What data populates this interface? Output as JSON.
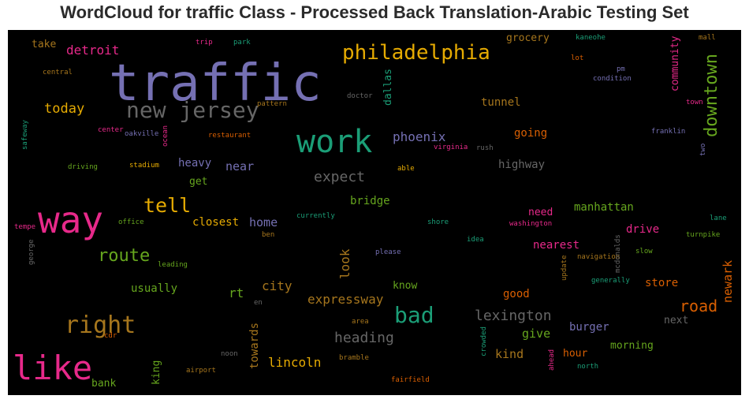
{
  "title": "WordCloud for traffic Class - Processed Back Translation-Arabic Testing Set",
  "words": [
    {
      "text": "traffic",
      "color": "#7570b3"
    },
    {
      "text": "way",
      "color": "#e7298a"
    },
    {
      "text": "like",
      "color": "#e7298a"
    },
    {
      "text": "work",
      "color": "#1b9e77"
    },
    {
      "text": "right",
      "color": "#a6761d"
    },
    {
      "text": "new jersey",
      "color": "#666666"
    },
    {
      "text": "philadelphia",
      "color": "#e6ab02"
    },
    {
      "text": "bad",
      "color": "#1b9e77"
    },
    {
      "text": "tell",
      "color": "#e6ab02"
    },
    {
      "text": "route",
      "color": "#66a61e"
    },
    {
      "text": "downtown",
      "color": "#66a61e"
    },
    {
      "text": "road",
      "color": "#d95f02"
    },
    {
      "text": "detroit",
      "color": "#e7298a"
    },
    {
      "text": "today",
      "color": "#e6ab02"
    },
    {
      "text": "phoenix",
      "color": "#7570b3"
    },
    {
      "text": "expect",
      "color": "#666666"
    },
    {
      "text": "lexington",
      "color": "#666666"
    },
    {
      "text": "heading",
      "color": "#666666"
    },
    {
      "text": "expressway",
      "color": "#a6761d"
    },
    {
      "text": "lincoln",
      "color": "#e6ab02"
    },
    {
      "text": "closest",
      "color": "#e6ab02"
    },
    {
      "text": "city",
      "color": "#a6761d"
    },
    {
      "text": "home",
      "color": "#7570b3"
    },
    {
      "text": "near",
      "color": "#7570b3"
    },
    {
      "text": "heavy",
      "color": "#7570b3"
    },
    {
      "text": "get",
      "color": "#66a61e"
    },
    {
      "text": "rt",
      "color": "#66a61e"
    },
    {
      "text": "usually",
      "color": "#66a61e"
    },
    {
      "text": "bridge",
      "color": "#66a61e"
    },
    {
      "text": "know",
      "color": "#66a61e"
    },
    {
      "text": "give",
      "color": "#66a61e"
    },
    {
      "text": "kind",
      "color": "#a6761d"
    },
    {
      "text": "good",
      "color": "#d95f02"
    },
    {
      "text": "going",
      "color": "#d95f02"
    },
    {
      "text": "tunnel",
      "color": "#a6761d"
    },
    {
      "text": "highway",
      "color": "#666666"
    },
    {
      "text": "grocery",
      "color": "#a6761d"
    },
    {
      "text": "need",
      "color": "#e7298a"
    },
    {
      "text": "manhattan",
      "color": "#66a61e"
    },
    {
      "text": "drive",
      "color": "#e7298a"
    },
    {
      "text": "nearest",
      "color": "#e7298a"
    },
    {
      "text": "store",
      "color": "#d95f02"
    },
    {
      "text": "burger",
      "color": "#7570b3"
    },
    {
      "text": "hour",
      "color": "#d95f02"
    },
    {
      "text": "morning",
      "color": "#66a61e"
    },
    {
      "text": "next",
      "color": "#666666"
    },
    {
      "text": "take",
      "color": "#a6761d"
    },
    {
      "text": "bank",
      "color": "#66a61e"
    },
    {
      "text": "look",
      "color": "#a6761d"
    },
    {
      "text": "towards",
      "color": "#a6761d"
    },
    {
      "text": "dallas",
      "color": "#1b9e77"
    },
    {
      "text": "community",
      "color": "#e7298a"
    },
    {
      "text": "newark",
      "color": "#d95f02"
    },
    {
      "text": "king",
      "color": "#66a61e"
    },
    {
      "text": "central",
      "color": "#a6761d"
    },
    {
      "text": "trip",
      "color": "#e7298a"
    },
    {
      "text": "park",
      "color": "#1b9e77"
    },
    {
      "text": "kaneohe",
      "color": "#1b9e77"
    },
    {
      "text": "mall",
      "color": "#a6761d"
    },
    {
      "text": "lot",
      "color": "#d95f02"
    },
    {
      "text": "pm",
      "color": "#7570b3"
    },
    {
      "text": "condition",
      "color": "#7570b3"
    },
    {
      "text": "pattern",
      "color": "#a6761d"
    },
    {
      "text": "doctor",
      "color": "#666666"
    },
    {
      "text": "town",
      "color": "#e7298a"
    },
    {
      "text": "center",
      "color": "#e7298a"
    },
    {
      "text": "oakville",
      "color": "#7570b3"
    },
    {
      "text": "restaurant",
      "color": "#d95f02"
    },
    {
      "text": "franklin",
      "color": "#7570b3"
    },
    {
      "text": "virginia",
      "color": "#e7298a"
    },
    {
      "text": "rush",
      "color": "#666666"
    },
    {
      "text": "driving",
      "color": "#66a61e"
    },
    {
      "text": "stadium",
      "color": "#e6ab02"
    },
    {
      "text": "able",
      "color": "#e6ab02"
    },
    {
      "text": "tempe",
      "color": "#e7298a"
    },
    {
      "text": "office",
      "color": "#66a61e"
    },
    {
      "text": "currently",
      "color": "#1b9e77"
    },
    {
      "text": "ben",
      "color": "#a6761d"
    },
    {
      "text": "shore",
      "color": "#1b9e77"
    },
    {
      "text": "washington",
      "color": "#e7298a"
    },
    {
      "text": "lane",
      "color": "#1b9e77"
    },
    {
      "text": "turnpike",
      "color": "#66a61e"
    },
    {
      "text": "idea",
      "color": "#1b9e77"
    },
    {
      "text": "please",
      "color": "#7570b3"
    },
    {
      "text": "slow",
      "color": "#66a61e"
    },
    {
      "text": "navigation",
      "color": "#a6761d"
    },
    {
      "text": "generally",
      "color": "#1b9e77"
    },
    {
      "text": "leading",
      "color": "#66a61e"
    },
    {
      "text": "area",
      "color": "#a6761d"
    },
    {
      "text": "noon",
      "color": "#666666"
    },
    {
      "text": "bramble",
      "color": "#a6761d"
    },
    {
      "text": "airport",
      "color": "#a6761d"
    },
    {
      "text": "fairfield",
      "color": "#d95f02"
    },
    {
      "text": "north",
      "color": "#1b9e77"
    },
    {
      "text": "cdr",
      "color": "#d95f02"
    },
    {
      "text": "en",
      "color": "#666666"
    },
    {
      "text": "safeway",
      "color": "#1b9e77"
    },
    {
      "text": "ocean",
      "color": "#e7298a"
    },
    {
      "text": "george",
      "color": "#666666"
    },
    {
      "text": "two",
      "color": "#7570b3"
    },
    {
      "text": "mcdonalds",
      "color": "#666666"
    },
    {
      "text": "update",
      "color": "#a6761d"
    },
    {
      "text": "crowded",
      "color": "#1b9e77"
    },
    {
      "text": "ahead",
      "color": "#e7298a"
    }
  ]
}
